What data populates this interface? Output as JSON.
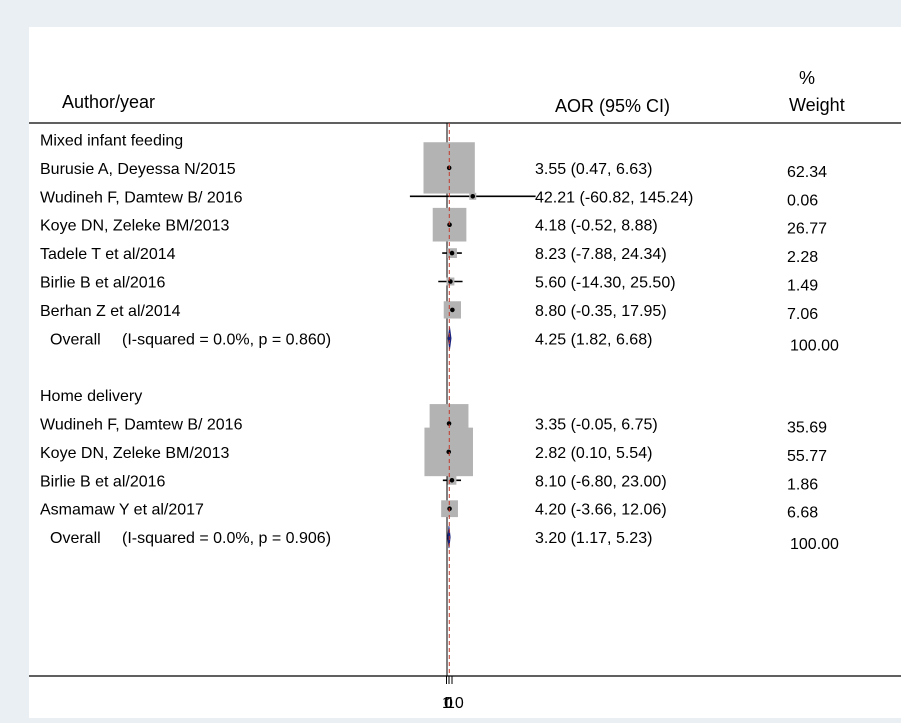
{
  "header": {
    "author_col": "Author/year",
    "effect_col": "AOR (95% CI)",
    "weight_col_line1": "%",
    "weight_col_line2": "Weight"
  },
  "chart_data": {
    "type": "forest",
    "effect_measure": "AOR (95% CI)",
    "x_tick_labels": [
      "1",
      "0",
      "10"
    ],
    "colors": {
      "box": "#b3b3b3",
      "ci_line": "#000000",
      "diamond": "#1a237e",
      "null_line": "#000000",
      "overall_line": "#c0392b"
    },
    "groups": [
      {
        "label": "Mixed infant feeding",
        "studies": [
          {
            "author": "Burusie A, Deyessa N/2015",
            "estimate": 3.55,
            "lower": 0.47,
            "upper": 6.63,
            "ci_text": "3.55 (0.47, 6.63)",
            "weight": 62.34,
            "weight_text": "62.34"
          },
          {
            "author": "Wudineh F, Damtew B/ 2016",
            "estimate": 42.21,
            "lower": -60.82,
            "upper": 145.24,
            "ci_text": "42.21 (-60.82, 145.24)",
            "weight": 0.06,
            "weight_text": "0.06"
          },
          {
            "author": "Koye DN, Zeleke BM/2013",
            "estimate": 4.18,
            "lower": -0.52,
            "upper": 8.88,
            "ci_text": "4.18 (-0.52, 8.88)",
            "weight": 26.77,
            "weight_text": "26.77"
          },
          {
            "author": "Tadele T et al/2014",
            "estimate": 8.23,
            "lower": -7.88,
            "upper": 24.34,
            "ci_text": "8.23 (-7.88, 24.34)",
            "weight": 2.28,
            "weight_text": "2.28"
          },
          {
            "author": "Birlie B et al/2016",
            "estimate": 5.6,
            "lower": -14.3,
            "upper": 25.5,
            "ci_text": "5.60 (-14.30, 25.50)",
            "weight": 1.49,
            "weight_text": "1.49"
          },
          {
            "author": "Berhan Z et al/2014",
            "estimate": 8.8,
            "lower": -0.35,
            "upper": 17.95,
            "ci_text": "8.80 (-0.35, 17.95)",
            "weight": 7.06,
            "weight_text": "7.06"
          }
        ],
        "overall": {
          "label_main": "Overall",
          "label_stats": "(I-squared = 0.0%, p = 0.860)",
          "estimate": 4.25,
          "lower": 1.82,
          "upper": 6.68,
          "ci_text": "4.25 (1.82, 6.68)",
          "weight_text": "100.00"
        }
      },
      {
        "label": "Home delivery",
        "studies": [
          {
            "author": "Wudineh F, Damtew B/ 2016",
            "estimate": 3.35,
            "lower": -0.05,
            "upper": 6.75,
            "ci_text": "3.35 (-0.05, 6.75)",
            "weight": 35.69,
            "weight_text": "35.69"
          },
          {
            "author": "Koye DN, Zeleke BM/2013",
            "estimate": 2.82,
            "lower": 0.1,
            "upper": 5.54,
            "ci_text": "2.82 (0.10, 5.54)",
            "weight": 55.77,
            "weight_text": "55.77"
          },
          {
            "author": "Birlie B et al/2016",
            "estimate": 8.1,
            "lower": -6.8,
            "upper": 23.0,
            "ci_text": "8.10 (-6.80, 23.00)",
            "weight": 1.86,
            "weight_text": "1.86"
          },
          {
            "author": "Asmamaw Y et al/2017",
            "estimate": 4.2,
            "lower": -3.66,
            "upper": 12.06,
            "ci_text": "4.20 (-3.66, 12.06)",
            "weight": 6.68,
            "weight_text": "6.68"
          }
        ],
        "overall": {
          "label_main": "Overall",
          "label_stats": "(I-squared = 0.0%, p = 0.906)",
          "estimate": 3.2,
          "lower": 1.17,
          "upper": 5.23,
          "ci_text": "3.20 (1.17, 5.23)",
          "weight_text": "100.00"
        }
      }
    ]
  }
}
